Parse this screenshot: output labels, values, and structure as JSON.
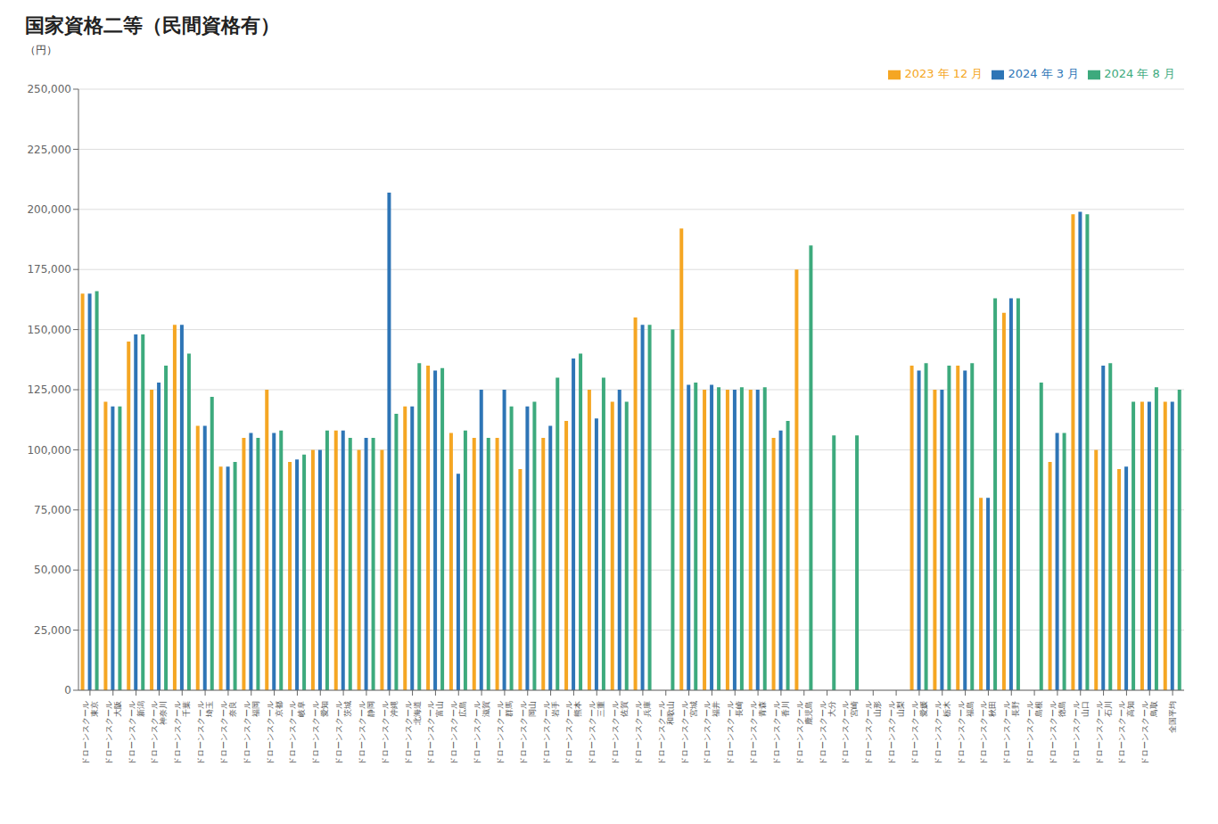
{
  "chart_data": {
    "type": "bar",
    "title": "国家資格二等（民間資格有）",
    "ylabel": "（円）",
    "categories": [
      "ドローンスクール\n東京",
      "ドローンスクール\n大阪",
      "ドローンスクール\n新潟",
      "ドローンスクール\n神奈川",
      "ドローンスクール\n千葉",
      "ドローンスクール\n埼玉",
      "ドローンスクール\n奈良",
      "ドローンスクール\n福岡",
      "ドローンスクール\n京都",
      "ドローンスクール\n岐阜",
      "ドローンスクール\n愛知",
      "ドローンスクール\n茨城",
      "ドローンスクール\n静岡",
      "ドローンスクール\n沖縄",
      "ドローンスクール\n北海道",
      "ドローンスクール\n富山",
      "ドローンスクール\n広島",
      "ドローンスクール\n滋賀",
      "ドローンスクール\n群馬",
      "ドローンスクール\n岡山",
      "ドローンスクール\n岩手",
      "ドローンスクール\n熊本",
      "ドローンスクール\n三重",
      "ドローンスクール\n佐賀",
      "ドローンスクール\n兵庫",
      "ドローンスクール\n和歌山",
      "ドローンスクール\n宮城",
      "ドローンスクール\n福井",
      "ドローンスクール\n長崎",
      "ドローンスクール\n青森",
      "ドローンスクール\n香川",
      "ドローンスクール\n鹿児島",
      "ドローンスクール\n大分",
      "ドローンスクール\n宮崎",
      "ドローンスクール\n山形",
      "ドローンスクール\n山梨",
      "ドローンスクール\n愛媛",
      "ドローンスクール\n栃木",
      "ドローンスクール\n福島",
      "ドローンスクール\n秋田",
      "ドローンスクール\n長野",
      "ドローンスクール\n島根",
      "ドローンスクール\n徳島",
      "ドローンスクール\n山口",
      "ドローンスクール\n石川",
      "ドローンスクール\n高知",
      "ドローンスクール\n鳥取",
      "全国平均"
    ],
    "series": [
      {
        "name": "2023 年 12 月",
        "color": "#F5A623",
        "values": [
          165000,
          120000,
          145000,
          125000,
          152000,
          110000,
          93000,
          105000,
          125000,
          95000,
          100000,
          108000,
          100000,
          100000,
          118000,
          135000,
          107000,
          105000,
          105000,
          92000,
          105000,
          112000,
          125000,
          120000,
          155000,
          null,
          192000,
          125000,
          125000,
          125000,
          105000,
          175000,
          null,
          null,
          null,
          null,
          135000,
          125000,
          135000,
          80000,
          157000,
          null,
          95000,
          198000,
          100000,
          92000,
          120000,
          120000
        ]
      },
      {
        "name": "2024 年 3 月",
        "color": "#2E75B6",
        "values": [
          165000,
          118000,
          148000,
          128000,
          152000,
          110000,
          93000,
          107000,
          107000,
          96000,
          100000,
          108000,
          105000,
          207000,
          118000,
          133000,
          90000,
          125000,
          125000,
          118000,
          110000,
          138000,
          113000,
          125000,
          152000,
          null,
          127000,
          127000,
          125000,
          125000,
          108000,
          null,
          null,
          null,
          null,
          null,
          133000,
          125000,
          133000,
          80000,
          163000,
          null,
          107000,
          199000,
          135000,
          93000,
          120000,
          120000
        ]
      },
      {
        "name": "2024 年 8 月",
        "color": "#3DAA7D",
        "values": [
          166000,
          118000,
          148000,
          135000,
          140000,
          122000,
          95000,
          105000,
          108000,
          98000,
          108000,
          105000,
          105000,
          115000,
          136000,
          134000,
          108000,
          105000,
          118000,
          120000,
          130000,
          140000,
          130000,
          120000,
          152000,
          150000,
          128000,
          126000,
          126000,
          126000,
          112000,
          185000,
          106000,
          106000,
          null,
          null,
          136000,
          135000,
          136000,
          163000,
          163000,
          128000,
          107000,
          198000,
          136000,
          120000,
          126000,
          125000
        ]
      }
    ],
    "ylim": [
      0,
      250000
    ],
    "yticks": [
      0,
      {
        "value": 25000,
        "label": "25,000"
      },
      {
        "value": 50000,
        "label": "50,000"
      },
      {
        "value": 75000,
        "label": "75,000"
      },
      {
        "value": 100000,
        "label": "100,000"
      },
      {
        "value": 125000,
        "label": "125,000"
      },
      {
        "value": 150000,
        "label": "150,000"
      },
      {
        "value": 175000,
        "label": "175,000"
      },
      {
        "value": 200000,
        "label": "200,000"
      },
      {
        "value": 225000,
        "label": "225,000"
      },
      {
        "value": 250000,
        "label": "250,000"
      }
    ],
    "grid": "y",
    "legend": "upper right"
  }
}
